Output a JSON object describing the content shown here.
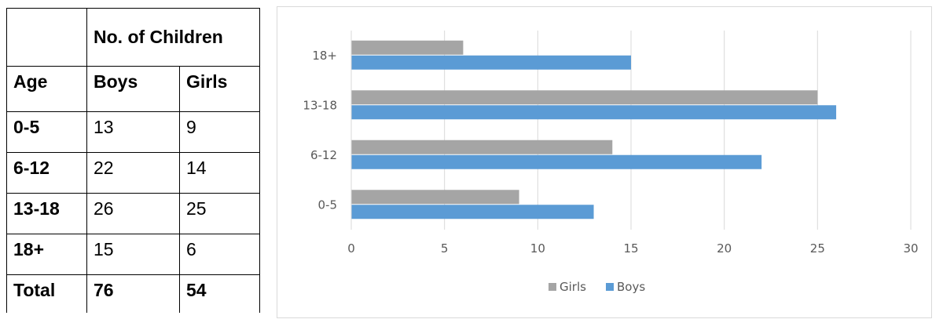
{
  "table": {
    "group_header": "No. of Children",
    "col_age": "Age",
    "col_boys": "Boys",
    "col_girls": "Girls",
    "rows": [
      {
        "age": "0-5",
        "boys": "13",
        "girls": "9"
      },
      {
        "age": "6-12",
        "boys": "22",
        "girls": "14"
      },
      {
        "age": "13-18",
        "boys": "26",
        "girls": "25"
      },
      {
        "age": "18+",
        "boys": "15",
        "girls": "6"
      }
    ],
    "total": {
      "label": "Total",
      "boys": "76",
      "girls": "54"
    }
  },
  "chart_data": {
    "type": "bar",
    "orientation": "horizontal",
    "categories": [
      "0-5",
      "6-12",
      "13-18",
      "18+"
    ],
    "series": [
      {
        "name": "Girls",
        "values": [
          9,
          14,
          25,
          6
        ],
        "color": "#a5a5a5"
      },
      {
        "name": "Boys",
        "values": [
          13,
          22,
          26,
          15
        ],
        "color": "#5b9bd5"
      }
    ],
    "xlim": [
      0,
      30
    ],
    "xticks": [
      "0",
      "5",
      "10",
      "15",
      "20",
      "25",
      "30"
    ],
    "grid": true,
    "legend": "bottom",
    "title": "",
    "xlabel": "",
    "ylabel": ""
  }
}
